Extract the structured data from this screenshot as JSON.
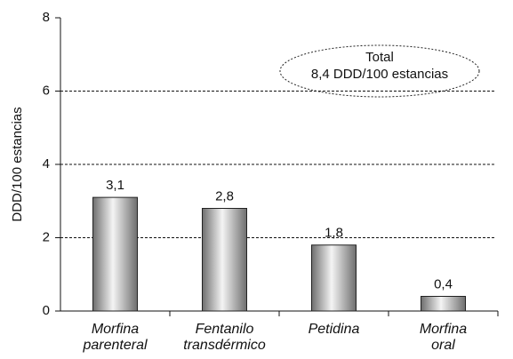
{
  "chart_data": {
    "type": "bar",
    "y_label": "DDD/100 estancias",
    "annotation": [
      "Total",
      "8,4 DDD/100 estancias"
    ],
    "categories": [
      [
        "Morfina",
        "parenteral"
      ],
      [
        "Fentanilo",
        "transdérmico"
      ],
      [
        "Petidina"
      ],
      [
        "Morfina",
        "oral"
      ]
    ],
    "values": [
      3.1,
      2.8,
      1.8,
      0.4
    ],
    "value_labels": [
      "3,1",
      "2,8",
      "1,8",
      "0,4"
    ],
    "color": "#888888",
    "ylim": [
      0,
      8
    ],
    "yticks": [
      0,
      2,
      4,
      6,
      8
    ],
    "grid": true
  }
}
